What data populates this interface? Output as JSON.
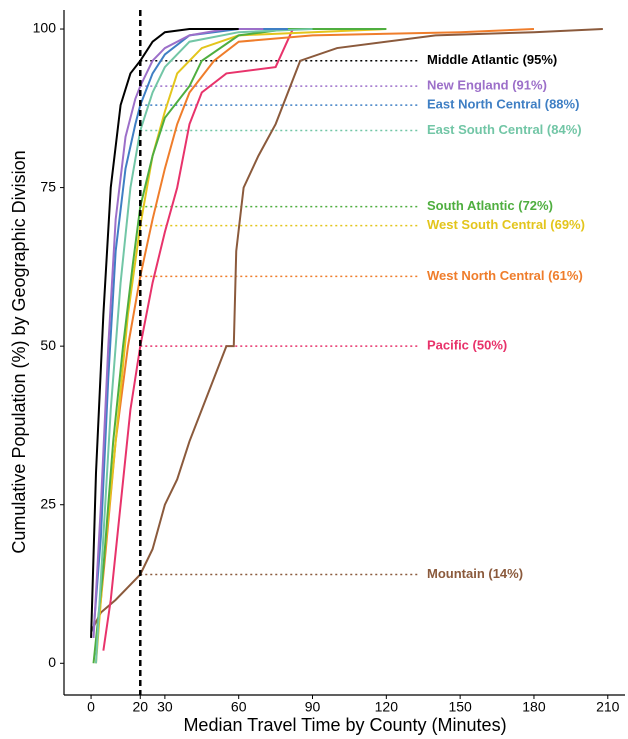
{
  "chart_data": {
    "type": "line",
    "xlabel": "Median Travel Time by County (Minutes)",
    "ylabel": "Cumulative Population (%) by Geographic Division",
    "xlim": [
      -11,
      217
    ],
    "ylim": [
      -5,
      103
    ],
    "xticks": [
      0,
      20,
      30,
      60,
      90,
      120,
      150,
      180,
      210
    ],
    "yticks": [
      0,
      25,
      50,
      75,
      100
    ],
    "vline": 20,
    "series": [
      {
        "name": "Middle Atlantic (95%)",
        "color": "#000000",
        "reference_value": 95,
        "x": [
          0,
          2,
          5,
          8,
          12,
          16,
          20,
          25,
          30,
          40,
          60
        ],
        "values": [
          4,
          30,
          55,
          75,
          88,
          93,
          95,
          98,
          99.5,
          100,
          100
        ]
      },
      {
        "name": "New England (91%)",
        "color": "#9c6fc9",
        "reference_value": 91,
        "x": [
          1,
          4,
          7,
          10,
          14,
          18,
          20,
          25,
          30,
          40,
          55,
          70
        ],
        "values": [
          4,
          25,
          50,
          70,
          83,
          89,
          91,
          95,
          97,
          99,
          100,
          100
        ]
      },
      {
        "name": "East North Central (88%)",
        "color": "#3f7fc4",
        "reference_value": 88,
        "x": [
          1,
          4,
          7,
          10,
          14,
          18,
          20,
          25,
          30,
          40,
          60,
          80
        ],
        "values": [
          5,
          20,
          45,
          65,
          78,
          85,
          88,
          93,
          96,
          99,
          100,
          100
        ]
      },
      {
        "name": "East South Central (84%)",
        "color": "#72c6a6",
        "reference_value": 84,
        "x": [
          2,
          5,
          8,
          12,
          16,
          20,
          25,
          30,
          40,
          60,
          90
        ],
        "values": [
          0,
          20,
          40,
          60,
          75,
          84,
          90,
          94,
          98,
          99.5,
          100
        ]
      },
      {
        "name": "South Atlantic (72%)",
        "color": "#4fae3f",
        "reference_value": 72,
        "x": [
          1,
          5,
          9,
          13,
          17,
          20,
          25,
          30,
          40,
          45,
          60,
          80,
          120
        ],
        "values": [
          0,
          15,
          35,
          50,
          63,
          72,
          80,
          86,
          91,
          95,
          99,
          100,
          100
        ]
      },
      {
        "name": "West South Central (69%)",
        "color": "#e3c51c",
        "reference_value": 69,
        "x": [
          2,
          5,
          10,
          15,
          20,
          25,
          30,
          35,
          45,
          60,
          90,
          120
        ],
        "values": [
          0,
          15,
          35,
          55,
          69,
          80,
          87,
          93,
          97,
          99,
          99.5,
          100
        ]
      },
      {
        "name": "West North Central (61%)",
        "color": "#ef7d2b",
        "reference_value": 61,
        "x": [
          2,
          6,
          10,
          15,
          20,
          25,
          30,
          35,
          40,
          50,
          60,
          90,
          150,
          180
        ],
        "values": [
          2,
          18,
          35,
          50,
          61,
          70,
          78,
          85,
          90,
          95,
          98,
          99,
          99.5,
          100
        ]
      },
      {
        "name": "Pacific (50%)",
        "color": "#e8336b",
        "reference_value": 50,
        "x": [
          5,
          8,
          12,
          16,
          20,
          25,
          30,
          35,
          40,
          45,
          55,
          75,
          82,
          90
        ],
        "values": [
          2,
          10,
          25,
          40,
          50,
          60,
          68,
          75,
          85,
          90,
          93,
          94,
          100,
          100
        ]
      },
      {
        "name": "Mountain (14%)",
        "color": "#8b5a3c",
        "reference_value": 14,
        "x": [
          0,
          4,
          10,
          15,
          20,
          25,
          30,
          35,
          40,
          45,
          50,
          55,
          58,
          59,
          62,
          68,
          75,
          80,
          85,
          100,
          140,
          180,
          208
        ],
        "values": [
          5,
          8,
          10,
          12,
          14,
          18,
          25,
          29,
          35,
          40,
          45,
          50,
          50,
          65,
          75,
          80,
          85,
          90,
          95,
          97,
          99,
          99.5,
          100
        ]
      }
    ]
  }
}
